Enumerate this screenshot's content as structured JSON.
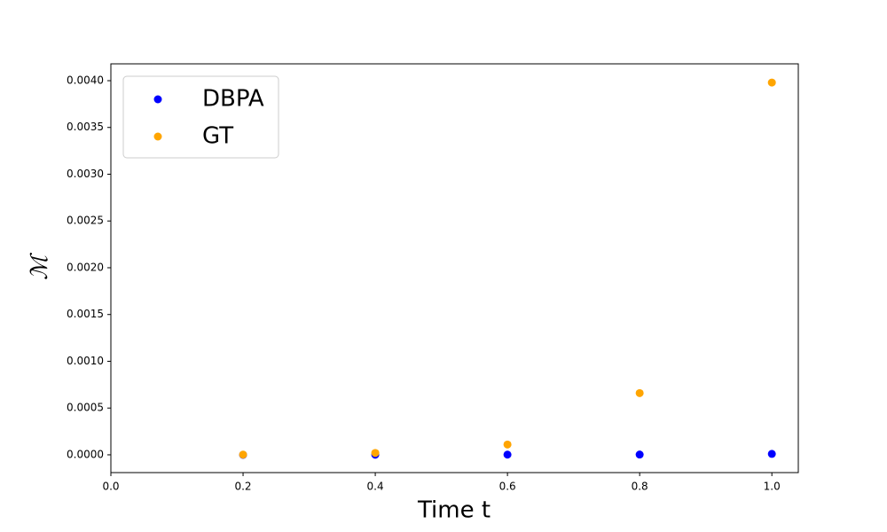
{
  "chart_data": {
    "type": "scatter",
    "x_label": "Time t",
    "y_label": "ℳ",
    "x": [
      0.2,
      0.4,
      0.6,
      0.8,
      1.0
    ],
    "series": [
      {
        "name": "DBPA",
        "color": "#0000ff",
        "values": [
          0.0,
          1e-06,
          2e-06,
          3e-06,
          1e-05
        ]
      },
      {
        "name": "GT",
        "color": "#ffa500",
        "values": [
          2e-06,
          2e-05,
          0.00011,
          0.00066,
          0.00398
        ]
      }
    ],
    "xlim": [
      0,
      1.04
    ],
    "ylim": [
      -0.00019,
      0.00418
    ],
    "xticks": [
      {
        "value": 0,
        "label": "0.0"
      },
      0.2,
      0.4,
      0.6,
      0.8,
      {
        "value": 1,
        "label": "1.0"
      }
    ],
    "yticks": [
      {
        "value": 0,
        "label": "0.0000"
      },
      {
        "value": 0.0005,
        "label": "0.0005"
      },
      {
        "value": 0.001,
        "label": "0.0010"
      },
      {
        "value": 0.0015,
        "label": "0.0015"
      },
      {
        "value": 0.002,
        "label": "0.0020"
      },
      {
        "value": 0.0025,
        "label": "0.0025"
      },
      {
        "value": 0.003,
        "label": "0.0030"
      },
      {
        "value": 0.0035,
        "label": "0.0035"
      },
      {
        "value": 0.004,
        "label": "0.0040"
      }
    ],
    "legend": "upper left",
    "grid": false
  }
}
